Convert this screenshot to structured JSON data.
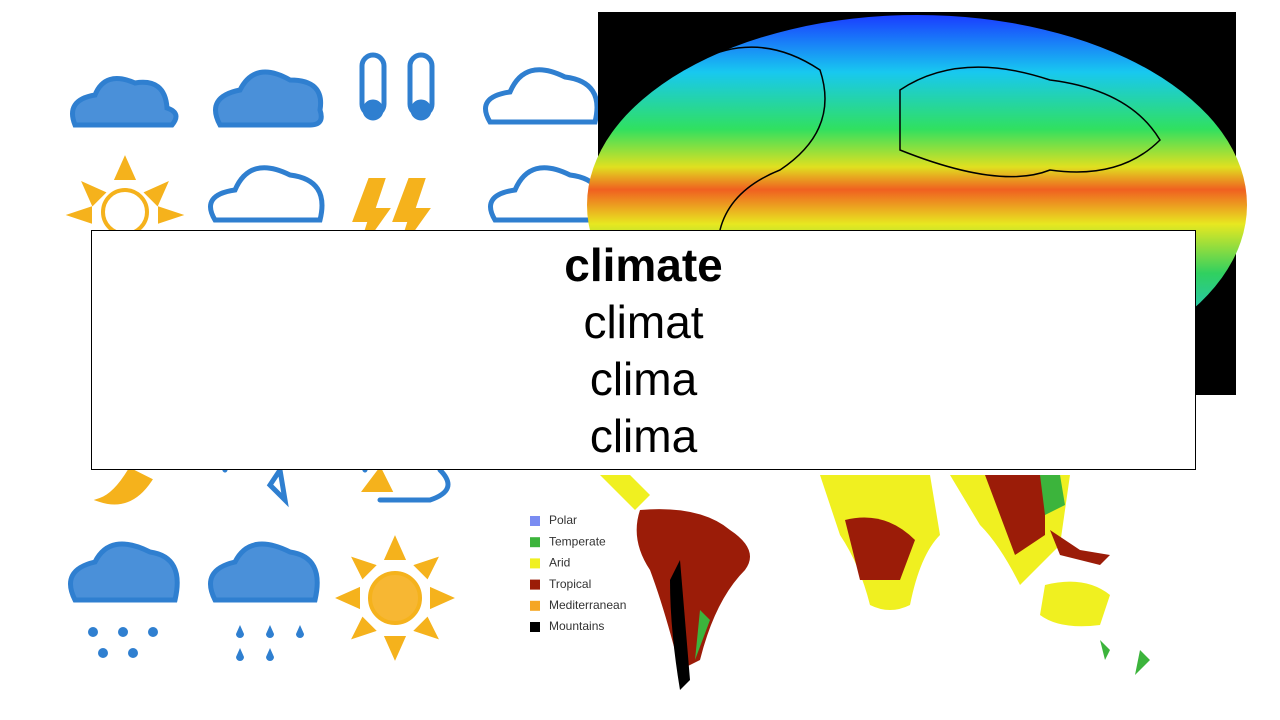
{
  "slide": {
    "words": [
      "climate",
      "climat",
      "clima",
      "clima"
    ]
  },
  "legend": [
    {
      "label": "Polar",
      "color": "#7a8cf2"
    },
    {
      "label": "Temperate",
      "color": "#3cb43c"
    },
    {
      "label": "Arid",
      "color": "#f0f020"
    },
    {
      "label": "Tropical",
      "color": "#9b1c08"
    },
    {
      "label": "Mediterranean",
      "color": "#f5a623"
    },
    {
      "label": "Mountains",
      "color": "#000000"
    }
  ]
}
